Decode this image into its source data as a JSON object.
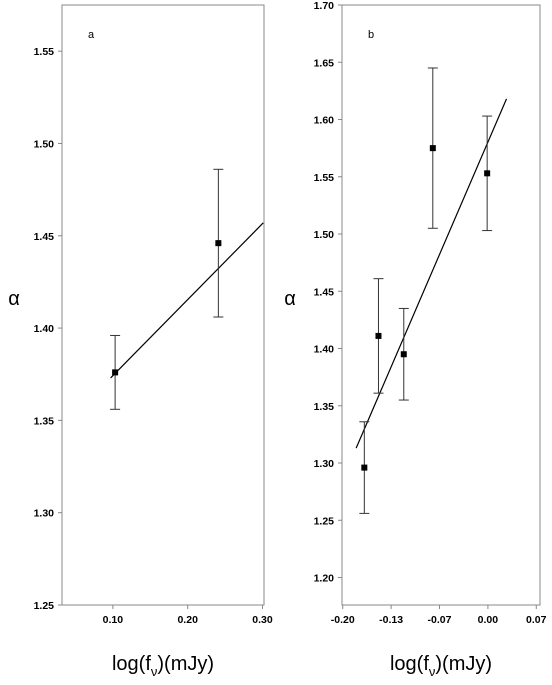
{
  "chart_data": [
    {
      "type": "scatter",
      "panel_label": "a",
      "ylabel": "α",
      "xlabel": [
        "log(f",
        "ν",
        ")(mJy)"
      ],
      "x": [
        0.103,
        0.241
      ],
      "values": [
        1.376,
        1.446
      ],
      "errors": [
        0.02,
        0.04
      ],
      "fit": {
        "x": [
          0.097,
          0.301
        ],
        "y": [
          1.373,
          1.457
        ]
      },
      "xlim": [
        0.032,
        0.302
      ],
      "ylim": [
        1.25,
        1.575
      ],
      "xticks": [
        {
          "value": 0.1,
          "label": "0.10"
        },
        {
          "value": 0.2,
          "label": "0.20"
        },
        {
          "value": 0.3,
          "label": "0.30"
        }
      ],
      "yticks": [
        {
          "value": 1.25,
          "label": "1.25"
        },
        {
          "value": 1.3,
          "label": "1.30"
        },
        1.35,
        {
          "value": 1.4,
          "label": "1.40"
        },
        1.45,
        {
          "value": 1.5,
          "label": "1.50"
        },
        1.55
      ],
      "color": "#000000"
    },
    {
      "type": "scatter",
      "panel_label": "b",
      "ylabel": "α",
      "xlabel": [
        "log(f",
        "ν",
        ")(mJy)"
      ],
      "x": [
        -0.166,
        -0.147,
        -0.113,
        -0.074,
        -0.001
      ],
      "values": [
        1.296,
        1.411,
        1.395,
        1.575,
        1.553
      ],
      "errors": [
        0.04,
        0.05,
        0.04,
        0.07,
        0.05
      ],
      "fit": {
        "x": [
          -0.177,
          0.025
        ],
        "y": [
          1.313,
          1.618
        ]
      },
      "xlim": [
        -0.196,
        0.07
      ],
      "ylim": [
        1.176,
        1.7
      ],
      "xticks": [
        {
          "value": -0.195,
          "label": "-0.20"
        },
        {
          "value": -0.13,
          "label": "-0.13"
        },
        {
          "value": -0.065,
          "label": "-0.07"
        },
        {
          "value": 0,
          "label": "0.00"
        },
        {
          "value": 0.065,
          "label": "0.07"
        }
      ],
      "yticks": [
        {
          "value": 1.2,
          "label": "1.20"
        },
        1.25,
        {
          "value": 1.3,
          "label": "1.30"
        },
        1.35,
        {
          "value": 1.4,
          "label": "1.40"
        },
        1.45,
        {
          "value": 1.5,
          "label": "1.50"
        },
        1.55,
        {
          "value": 1.6,
          "label": "1.60"
        },
        1.65,
        {
          "value": 1.7,
          "label": "1.70"
        }
      ],
      "color": "#000000"
    }
  ]
}
